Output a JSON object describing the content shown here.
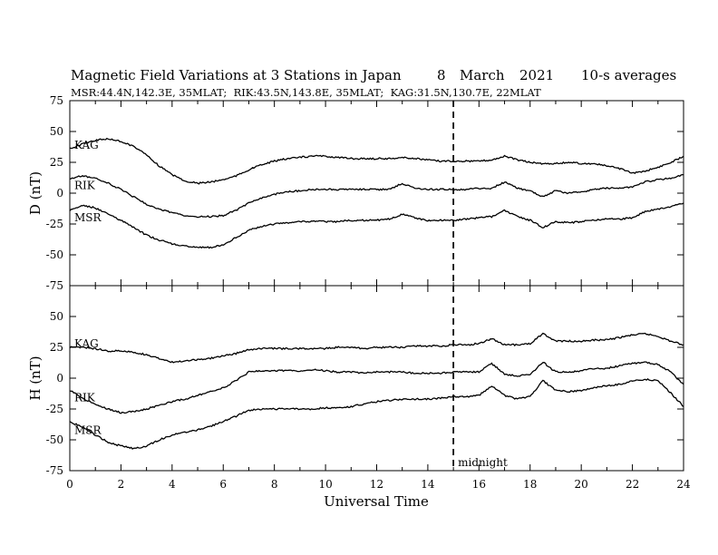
{
  "header": {
    "title": "Magnetic Field Variations at 3 Stations in Japan",
    "date_day": "8",
    "date_month": "March",
    "date_year": "2021",
    "averaging": "10-s averages",
    "stations_line": "MSR:44.4N,142.3E, 35MLAT;  RIK:43.5N,143.8E, 35MLAT;  KAG:31.5N,130.7E, 22MLAT"
  },
  "annotation": {
    "midnight_label": "midnight",
    "midnight_ut": 15
  },
  "chart_data": [
    {
      "id": "D",
      "type": "line",
      "ylabel": "D (nT)",
      "xlabel": "",
      "xlim": [
        0,
        24
      ],
      "ylim": [
        -75,
        75
      ],
      "yticks": [
        -75,
        -50,
        -25,
        0,
        25,
        50,
        75
      ],
      "series": [
        {
          "name": "KAG",
          "color": "#000000",
          "x": [
            0,
            0.5,
            1,
            1.5,
            2,
            2.5,
            3,
            3.5,
            4,
            4.5,
            5,
            5.5,
            6,
            6.5,
            7,
            7.5,
            8,
            8.5,
            9,
            9.5,
            10,
            10.5,
            11,
            11.5,
            12,
            12.5,
            13,
            13.5,
            14,
            14.5,
            15,
            15.5,
            16,
            16.5,
            17,
            17.5,
            18,
            18.5,
            19,
            19.5,
            20,
            20.5,
            21,
            21.5,
            22,
            22.5,
            23,
            23.5,
            24
          ],
          "y": [
            36,
            40,
            43,
            44,
            42,
            38,
            31,
            22,
            15,
            10,
            8,
            9,
            11,
            14,
            19,
            23,
            26,
            28,
            29,
            30,
            30,
            29,
            28,
            28,
            28,
            28,
            29,
            28,
            27,
            26,
            26,
            26,
            26,
            27,
            30,
            27,
            25,
            24,
            24,
            25,
            24,
            24,
            22,
            20,
            16,
            18,
            21,
            25,
            30
          ]
        },
        {
          "name": "RIK",
          "color": "#000000",
          "x": [
            0,
            0.5,
            1,
            1.5,
            2,
            2.5,
            3,
            3.5,
            4,
            4.5,
            5,
            5.5,
            6,
            6.5,
            7,
            7.5,
            8,
            8.5,
            9,
            9.5,
            10,
            10.5,
            11,
            11.5,
            12,
            12.5,
            13,
            13.5,
            14,
            14.5,
            15,
            15.5,
            16,
            16.5,
            17,
            17.5,
            18,
            18.5,
            19,
            19.5,
            20,
            20.5,
            21,
            21.5,
            22,
            22.5,
            23,
            23.5,
            24
          ],
          "y": [
            12,
            14,
            12,
            8,
            3,
            -3,
            -9,
            -13,
            -16,
            -18,
            -19,
            -19,
            -18,
            -14,
            -8,
            -4,
            -1,
            1,
            2,
            3,
            3,
            3,
            3,
            3,
            3,
            3,
            8,
            4,
            3,
            3,
            3,
            3,
            4,
            4,
            9,
            4,
            2,
            -3,
            2,
            0,
            1,
            3,
            4,
            4,
            5,
            9,
            11,
            12,
            15
          ]
        },
        {
          "name": "MSR",
          "color": "#000000",
          "x": [
            0,
            0.5,
            1,
            1.5,
            2,
            2.5,
            3,
            3.5,
            4,
            4.5,
            5,
            5.5,
            6,
            6.5,
            7,
            7.5,
            8,
            8.5,
            9,
            9.5,
            10,
            10.5,
            11,
            11.5,
            12,
            12.5,
            13,
            13.5,
            14,
            14.5,
            15,
            15.5,
            16,
            16.5,
            17,
            17.5,
            18,
            18.5,
            19,
            19.5,
            20,
            20.5,
            21,
            21.5,
            22,
            22.5,
            23,
            23.5,
            24
          ],
          "y": [
            -14,
            -10,
            -12,
            -17,
            -22,
            -28,
            -34,
            -38,
            -41,
            -43,
            -44,
            -44,
            -42,
            -36,
            -30,
            -27,
            -25,
            -24,
            -23,
            -23,
            -23,
            -23,
            -22,
            -22,
            -22,
            -21,
            -17,
            -20,
            -22,
            -22,
            -22,
            -21,
            -20,
            -19,
            -14,
            -19,
            -22,
            -28,
            -23,
            -24,
            -23,
            -22,
            -21,
            -21,
            -20,
            -15,
            -13,
            -11,
            -8
          ]
        }
      ],
      "labels": [
        "KAG",
        "RIK",
        "MSR"
      ]
    },
    {
      "id": "H",
      "type": "line",
      "ylabel": "H (nT)",
      "xlabel": "Universal Time",
      "xlim": [
        0,
        24
      ],
      "ylim": [
        -75,
        75
      ],
      "xticks": [
        0,
        2,
        4,
        6,
        8,
        10,
        12,
        14,
        16,
        18,
        20,
        22,
        24
      ],
      "yticks": [
        -75,
        -50,
        -25,
        0,
        25,
        50,
        75
      ],
      "series": [
        {
          "name": "KAG",
          "color": "#000000",
          "x": [
            0,
            0.5,
            1,
            1.5,
            2,
            2.5,
            3,
            3.5,
            4,
            4.5,
            5,
            5.5,
            6,
            6.5,
            7,
            7.5,
            8,
            8.5,
            9,
            9.5,
            10,
            10.5,
            11,
            11.5,
            12,
            12.5,
            13,
            13.5,
            14,
            14.5,
            15,
            15.5,
            16,
            16.5,
            17,
            17.5,
            18,
            18.5,
            19,
            19.5,
            20,
            20.5,
            21,
            21.5,
            22,
            22.5,
            23,
            23.5,
            24
          ],
          "y": [
            25,
            25,
            24,
            22,
            22,
            21,
            19,
            16,
            13,
            14,
            15,
            16,
            18,
            20,
            23,
            24,
            24,
            24,
            24,
            24,
            24,
            25,
            25,
            24,
            25,
            25,
            25,
            26,
            26,
            26,
            27,
            27,
            28,
            32,
            27,
            27,
            28,
            36,
            30,
            30,
            30,
            31,
            31,
            33,
            35,
            36,
            34,
            30,
            27
          ]
        },
        {
          "name": "RIK",
          "color": "#000000",
          "x": [
            0,
            0.5,
            1,
            1.5,
            2,
            2.5,
            3,
            3.5,
            4,
            4.5,
            5,
            5.5,
            6,
            6.5,
            7,
            7.5,
            8,
            8.5,
            9,
            9.5,
            10,
            10.5,
            11,
            11.5,
            12,
            12.5,
            13,
            13.5,
            14,
            14.5,
            15,
            15.5,
            16,
            16.5,
            17,
            17.5,
            18,
            18.5,
            19,
            19.5,
            20,
            20.5,
            21,
            21.5,
            22,
            22.5,
            23,
            23.5,
            24
          ],
          "y": [
            -10,
            -16,
            -21,
            -25,
            -28,
            -27,
            -25,
            -22,
            -19,
            -17,
            -14,
            -11,
            -8,
            -2,
            5,
            6,
            6,
            6,
            6,
            7,
            6,
            5,
            5,
            4,
            5,
            5,
            5,
            4,
            4,
            4,
            5,
            5,
            5,
            12,
            3,
            2,
            3,
            13,
            5,
            5,
            6,
            8,
            8,
            10,
            12,
            13,
            11,
            5,
            -5
          ]
        },
        {
          "name": "MSR",
          "color": "#000000",
          "x": [
            0,
            0.5,
            1,
            1.5,
            2,
            2.5,
            3,
            3.5,
            4,
            4.5,
            5,
            5.5,
            6,
            6.5,
            7,
            7.5,
            8,
            8.5,
            9,
            9.5,
            10,
            10.5,
            11,
            11.5,
            12,
            12.5,
            13,
            13.5,
            14,
            14.5,
            15,
            15.5,
            16,
            16.5,
            17,
            17.5,
            18,
            18.5,
            19,
            19.5,
            20,
            20.5,
            21,
            21.5,
            22,
            22.5,
            23,
            23.5,
            24
          ],
          "y": [
            -35,
            -40,
            -46,
            -52,
            -55,
            -57,
            -55,
            -50,
            -46,
            -44,
            -42,
            -39,
            -35,
            -31,
            -26,
            -25,
            -25,
            -25,
            -25,
            -25,
            -24,
            -24,
            -23,
            -21,
            -19,
            -18,
            -17,
            -17,
            -17,
            -16,
            -15,
            -15,
            -14,
            -6,
            -14,
            -17,
            -15,
            -2,
            -10,
            -11,
            -10,
            -8,
            -6,
            -5,
            -2,
            -1,
            -2,
            -12,
            -23
          ]
        }
      ],
      "labels": [
        "KAG",
        "RIK",
        "MSR"
      ]
    }
  ]
}
